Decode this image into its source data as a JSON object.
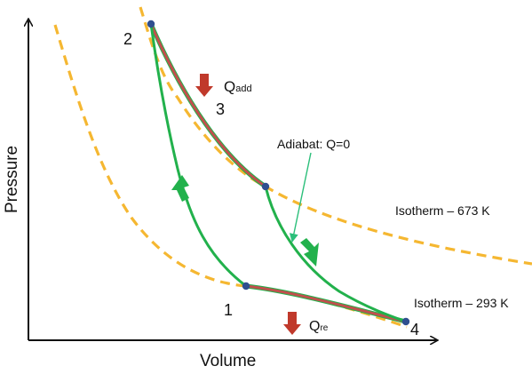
{
  "axes": {
    "x_label": "Volume",
    "y_label": "Pressure"
  },
  "states": [
    {
      "id": "1",
      "label": "1"
    },
    {
      "id": "2",
      "label": "2"
    },
    {
      "id": "3",
      "label": "3"
    },
    {
      "id": "4",
      "label": "4"
    }
  ],
  "annotations": {
    "isotherm_hot": "Isotherm – 673 K",
    "isotherm_cold": "Isotherm – 293 K",
    "adiabat": "Adiabat: Q=0",
    "q_add_main": "Q",
    "q_add_sub": "add",
    "q_re_main": "Q",
    "q_re_sub": "re"
  },
  "colors": {
    "isotherm": "#f5b731",
    "adiabat": "#22b14c",
    "heat_path": "#c0504d",
    "state_point": "#2f4f8f",
    "heat_arrow": "#c0392b",
    "pointer": "#2bbf7a"
  }
}
